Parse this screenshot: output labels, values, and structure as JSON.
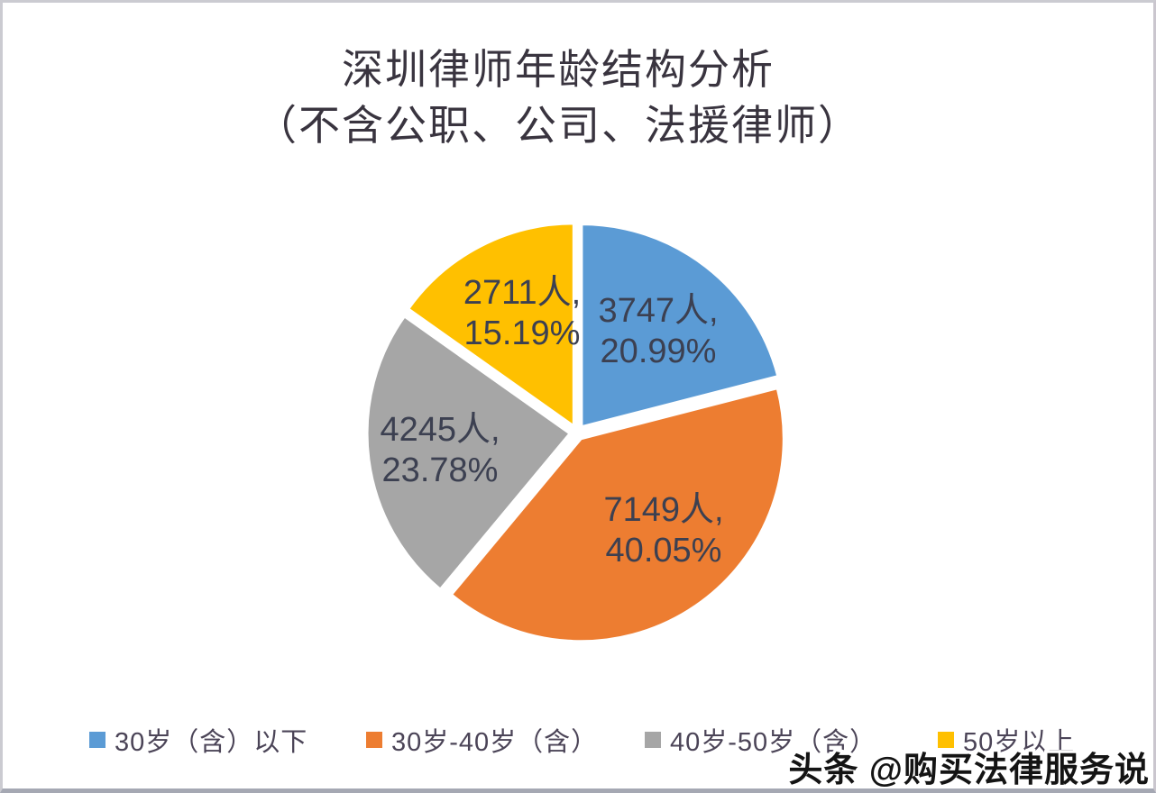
{
  "page": {
    "background": "#ffffff",
    "frame_border_color": "#cbcbd1",
    "bottom_strip_color": "#a5a8b3"
  },
  "title": {
    "line1": "深圳律师年龄结构分析",
    "line2": "（不含公职、公司、法援律师）",
    "color": "#39343f"
  },
  "watermark": {
    "text": "头条 @购买法律服务说"
  },
  "chart_data": {
    "type": "pie",
    "title": "深圳律师年龄结构分析（不含公职、公司、法援律师）",
    "unit": "人",
    "legend_position": "bottom",
    "start_angle_deg": 0,
    "direction": "clockwise",
    "slices": [
      {
        "label": "30岁（含）以下",
        "value": 3747,
        "pct": 20.99,
        "color": "#5B9BD5",
        "display_value": "3747人,",
        "display_pct": "20.99%"
      },
      {
        "label": "30岁-40岁（含）",
        "value": 7149,
        "pct": 40.05,
        "color": "#ED7D31",
        "display_value": "7149人,",
        "display_pct": "40.05%"
      },
      {
        "label": "40岁-50岁（含）",
        "value": 4245,
        "pct": 23.78,
        "color": "#A6A6A6",
        "display_value": "4245人,",
        "display_pct": "23.78%"
      },
      {
        "label": "50岁以上",
        "value": 2711,
        "pct": 15.19,
        "color": "#FFC000",
        "display_value": "2711人,",
        "display_pct": "15.19%"
      }
    ]
  }
}
